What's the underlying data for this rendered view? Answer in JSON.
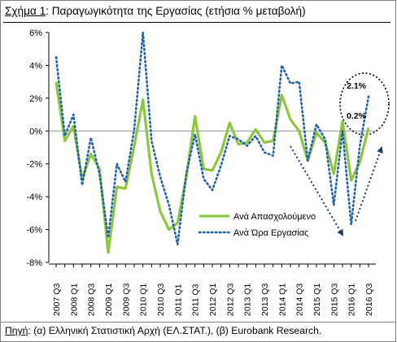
{
  "title": {
    "label": "Σχήμα 1",
    "sep": ": ",
    "text": "Παραγωγικότητα της Εργασίας (ετήσια % μεταβολή)"
  },
  "source": {
    "label": "Πηγή",
    "sep": ": ",
    "text": "(α) Ελληνική Στατιστική Αρχή (ΕΛ.ΣΤΑΤ.), (β) Eurobank Research."
  },
  "colors": {
    "employed": "#8cc63f",
    "hours": "#1f5fa8",
    "arrow": "#1f3864",
    "zero_line": "#9ea7b3",
    "axis": "#000000"
  },
  "chart_data": {
    "type": "line",
    "title": "Παραγωγικότητα της Εργασίας (ετήσια % μεταβολή)",
    "xlabel": "",
    "ylabel": "",
    "ylim": [
      -8,
      6
    ],
    "yticks": [
      -8,
      -6,
      -4,
      -2,
      0,
      2,
      4,
      6
    ],
    "ytick_labels": [
      "-8%",
      "-6%",
      "-4%",
      "-2%",
      "0%",
      "2%",
      "4%",
      "6%"
    ],
    "grid": false,
    "legend_position": "lower-right",
    "x": [
      "2007 Q3",
      "2007 Q4",
      "2008 Q1",
      "2008 Q2",
      "2008 Q3",
      "2008 Q4",
      "2009 Q1",
      "2009 Q2",
      "2009 Q3",
      "2009 Q4",
      "2010 Q1",
      "2010 Q2",
      "2010 Q3",
      "2010 Q4",
      "2011 Q1",
      "2011 Q2",
      "2011 Q3",
      "2011 Q4",
      "2012 Q1",
      "2012 Q2",
      "2012 Q3",
      "2012 Q4",
      "2013 Q1",
      "2013 Q2",
      "2013 Q3",
      "2013 Q4",
      "2014 Q1",
      "2014 Q2",
      "2014 Q3",
      "2014 Q4",
      "2015 Q1",
      "2015 Q2",
      "2015 Q3",
      "2015 Q4",
      "2016 Q1",
      "2016 Q2",
      "2016 Q3"
    ],
    "x_tick_labels": [
      "2007 Q3",
      "",
      "2008 Q1",
      "",
      "2008 Q3",
      "",
      "2009 Q1",
      "",
      "2009 Q3",
      "",
      "2010 Q1",
      "",
      "2010 Q3",
      "",
      "2011 Q1",
      "",
      "2011 Q3",
      "",
      "2012 Q1",
      "",
      "2012 Q3",
      "",
      "2013 Q1",
      "",
      "2013 Q3",
      "",
      "2014 Q1",
      "",
      "2014 Q3",
      "",
      "2015 Q1",
      "",
      "2015 Q3",
      "",
      "2016 Q1",
      "",
      "2016 Q3"
    ],
    "series": [
      {
        "name": "Ανά Απασχολούμενο",
        "style": "solid",
        "values": [
          3.0,
          -0.6,
          0.3,
          -2.9,
          -1.4,
          -2.3,
          -7.4,
          -3.4,
          -3.5,
          -0.9,
          1.9,
          -2.6,
          -4.9,
          -6.0,
          -5.6,
          -2.8,
          0.9,
          -2.3,
          -2.4,
          -1.3,
          0.5,
          -0.8,
          -0.7,
          0.1,
          -0.7,
          -0.6,
          2.2,
          0.7,
          0.0,
          -1.8,
          -0.1,
          -0.7,
          -2.6,
          0.6,
          -3.0,
          -1.9,
          0.2
        ]
      },
      {
        "name": "Ανά Ώρα Εργασίας",
        "style": "dotted",
        "values": [
          4.5,
          -0.3,
          1.0,
          -3.3,
          -0.4,
          -2.6,
          -6.5,
          -2.0,
          -3.1,
          0.1,
          6.0,
          -0.6,
          -2.8,
          -4.5,
          -6.9,
          -2.6,
          -0.2,
          -2.9,
          -3.6,
          -2.1,
          -0.3,
          -0.5,
          -0.9,
          -0.3,
          -1.3,
          -1.5,
          4.0,
          2.9,
          3.0,
          -1.8,
          0.4,
          -0.5,
          -4.5,
          0.0,
          -5.7,
          -0.9,
          2.1
        ]
      }
    ],
    "annotations": [
      {
        "text": "2.1%",
        "series": "Ανά Ώρα Εργασίας",
        "x": "2016 Q3",
        "value": 2.1
      },
      {
        "text": "0.2%",
        "series": "Ανά Απασχολούμενο",
        "x": "2016 Q3",
        "value": 0.2
      }
    ]
  }
}
